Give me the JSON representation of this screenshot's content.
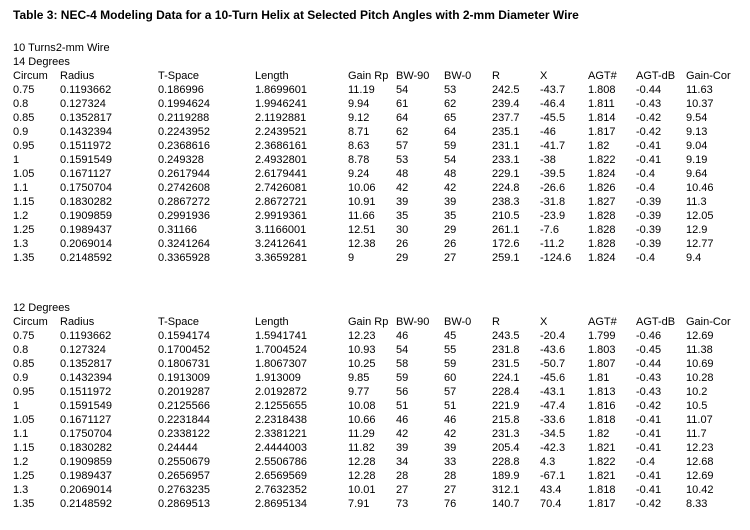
{
  "title": "Table 3: NEC-4 Modeling Data for a 10-Turn Helix at Selected Pitch Angles with 2-mm Diameter Wire",
  "meta": {
    "turns": "10 Turns",
    "wire": "2-mm Wire"
  },
  "colors": {
    "background": "#ffffff",
    "text": "#000000"
  },
  "columns": [
    "Circum",
    "Radius",
    "T-Space",
    "Length",
    "Gain Rp",
    "BW-90",
    "BW-0",
    "R",
    "X",
    "AGT#",
    "AGT-dB",
    "Gain-Cor"
  ],
  "sections": [
    {
      "label": "14 Degrees",
      "rows": [
        [
          "0.75",
          "0.1193662",
          "0.186996",
          "1.8699601",
          "11.19",
          "54",
          "53",
          "242.5",
          "-43.7",
          "1.808",
          "-0.44",
          "11.63"
        ],
        [
          "0.8",
          "0.127324",
          "0.1994624",
          "1.9946241",
          "9.94",
          "61",
          "62",
          "239.4",
          "-46.4",
          "1.811",
          "-0.43",
          "10.37"
        ],
        [
          "0.85",
          "0.1352817",
          "0.2119288",
          "2.1192881",
          "9.12",
          "64",
          "65",
          "237.7",
          "-45.5",
          "1.814",
          "-0.42",
          "9.54"
        ],
        [
          "0.9",
          "0.1432394",
          "0.2243952",
          "2.2439521",
          "8.71",
          "62",
          "64",
          "235.1",
          "-46",
          "1.817",
          "-0.42",
          "9.13"
        ],
        [
          "0.95",
          "0.1511972",
          "0.2368616",
          "2.3686161",
          "8.63",
          "57",
          "59",
          "231.1",
          "-41.7",
          "1.82",
          "-0.41",
          "9.04"
        ],
        [
          "1",
          "0.1591549",
          "0.249328",
          "2.4932801",
          "8.78",
          "53",
          "54",
          "233.1",
          "-38",
          "1.822",
          "-0.41",
          "9.19"
        ],
        [
          "1.05",
          "0.1671127",
          "0.2617944",
          "2.6179441",
          "9.24",
          "48",
          "48",
          "229.1",
          "-39.5",
          "1.824",
          "-0.4",
          "9.64"
        ],
        [
          "1.1",
          "0.1750704",
          "0.2742608",
          "2.7426081",
          "10.06",
          "42",
          "42",
          "224.8",
          "-26.6",
          "1.826",
          "-0.4",
          "10.46"
        ],
        [
          "1.15",
          "0.1830282",
          "0.2867272",
          "2.8672721",
          "10.91",
          "39",
          "39",
          "238.3",
          "-31.8",
          "1.827",
          "-0.39",
          "11.3"
        ],
        [
          "1.2",
          "0.1909859",
          "0.2991936",
          "2.9919361",
          "11.66",
          "35",
          "35",
          "210.5",
          "-23.9",
          "1.828",
          "-0.39",
          "12.05"
        ],
        [
          "1.25",
          "0.1989437",
          "0.31166",
          "3.1166001",
          "12.51",
          "30",
          "29",
          "261.1",
          "-7.6",
          "1.828",
          "-0.39",
          "12.9"
        ],
        [
          "1.3",
          "0.2069014",
          "0.3241264",
          "3.2412641",
          "12.38",
          "26",
          "26",
          "172.6",
          "-11.2",
          "1.828",
          "-0.39",
          "12.77"
        ],
        [
          "1.35",
          "0.2148592",
          "0.3365928",
          "3.3659281",
          "9",
          "29",
          "27",
          "259.1",
          "-124.6",
          "1.824",
          "-0.4",
          "9.4"
        ]
      ]
    },
    {
      "label": "12 Degrees",
      "rows": [
        [
          "0.75",
          "0.1193662",
          "0.1594174",
          "1.5941741",
          "12.23",
          "46",
          "45",
          "243.5",
          "-20.4",
          "1.799",
          "-0.46",
          "12.69"
        ],
        [
          "0.8",
          "0.127324",
          "0.1700452",
          "1.7004524",
          "10.93",
          "54",
          "55",
          "231.8",
          "-43.6",
          "1.803",
          "-0.45",
          "11.38"
        ],
        [
          "0.85",
          "0.1352817",
          "0.1806731",
          "1.8067307",
          "10.25",
          "58",
          "59",
          "231.5",
          "-50.7",
          "1.807",
          "-0.44",
          "10.69"
        ],
        [
          "0.9",
          "0.1432394",
          "0.1913009",
          "1.913009",
          "9.85",
          "59",
          "60",
          "224.1",
          "-45.6",
          "1.81",
          "-0.43",
          "10.28"
        ],
        [
          "0.95",
          "0.1511972",
          "0.2019287",
          "2.0192872",
          "9.77",
          "56",
          "57",
          "228.4",
          "-43.1",
          "1.813",
          "-0.43",
          "10.2"
        ],
        [
          "1",
          "0.1591549",
          "0.2125566",
          "2.1255655",
          "10.08",
          "51",
          "51",
          "221.9",
          "-47.4",
          "1.816",
          "-0.42",
          "10.5"
        ],
        [
          "1.05",
          "0.1671127",
          "0.2231844",
          "2.2318438",
          "10.66",
          "46",
          "46",
          "215.8",
          "-33.6",
          "1.818",
          "-0.41",
          "11.07"
        ],
        [
          "1.1",
          "0.1750704",
          "0.2338122",
          "2.3381221",
          "11.29",
          "42",
          "42",
          "231.3",
          "-34.5",
          "1.82",
          "-0.41",
          "11.7"
        ],
        [
          "1.15",
          "0.1830282",
          "0.24444",
          "2.4444003",
          "11.82",
          "39",
          "39",
          "205.4",
          "-42.3",
          "1.821",
          "-0.41",
          "12.23"
        ],
        [
          "1.2",
          "0.1909859",
          "0.2550679",
          "2.5506786",
          "12.28",
          "34",
          "33",
          "228.8",
          "4.3",
          "1.822",
          "-0.4",
          "12.68"
        ],
        [
          "1.25",
          "0.1989437",
          "0.2656957",
          "2.6569569",
          "12.28",
          "28",
          "28",
          "189.9",
          "-67.1",
          "1.821",
          "-0.41",
          "12.69"
        ],
        [
          "1.3",
          "0.2069014",
          "0.2763235",
          "2.7632352",
          "10.01",
          "27",
          "27",
          "312.1",
          "43.4",
          "1.818",
          "-0.41",
          "10.42"
        ],
        [
          "1.35",
          "0.2148592",
          "0.2869513",
          "2.8695134",
          "7.91",
          "73",
          "76",
          "140.7",
          "70.4",
          "1.817",
          "-0.42",
          "8.33"
        ]
      ]
    }
  ]
}
